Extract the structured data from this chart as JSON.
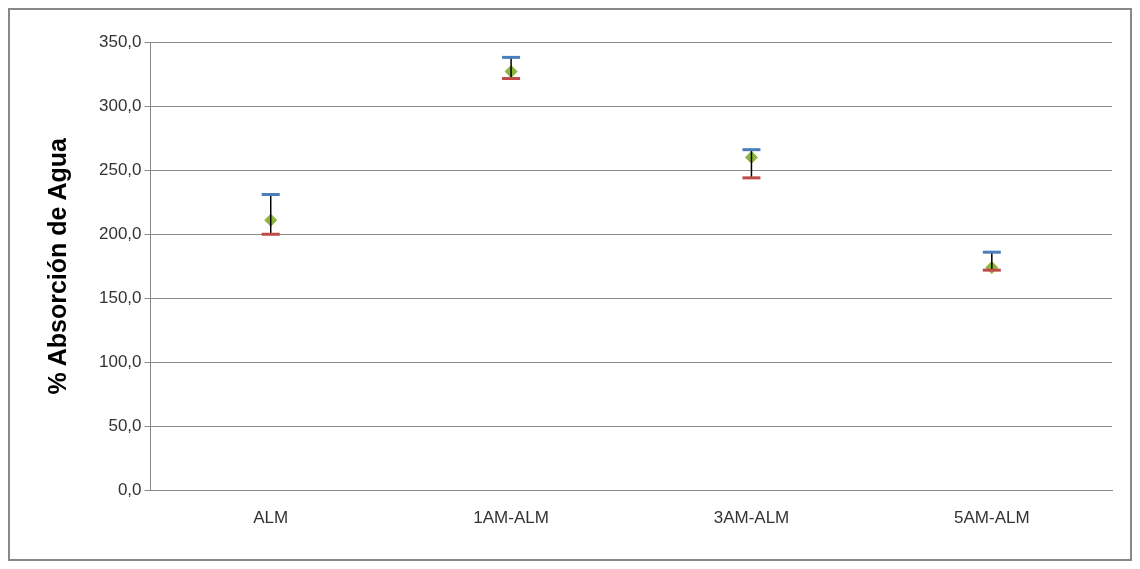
{
  "chart_data": {
    "type": "scatter",
    "ylabel": "% Absorción de Agua",
    "categories": [
      "ALM",
      "1AM-ALM",
      "3AM-ALM",
      "5AM-ALM"
    ],
    "series": [
      {
        "color": "#8db63c",
        "values": [
          211,
          327,
          260,
          174
        ],
        "errors": [
          [
            200,
            231
          ],
          [
            321.5,
            338
          ],
          [
            244,
            266
          ],
          [
            172,
            186
          ]
        ]
      }
    ],
    "marker": "diamond",
    "ylim": [
      0,
      350
    ],
    "yticks": [
      {
        "value": 0,
        "label": "0,0"
      },
      {
        "value": 50,
        "label": "50,0"
      },
      {
        "value": 100,
        "label": "100,0"
      },
      {
        "value": 150,
        "label": "150,0"
      },
      {
        "value": 200,
        "label": "200,0"
      },
      {
        "value": 250,
        "label": "250,0"
      },
      {
        "value": 300,
        "label": "300,0"
      },
      {
        "value": 350,
        "label": "350,0"
      }
    ],
    "grid": "y",
    "legend": false
  }
}
